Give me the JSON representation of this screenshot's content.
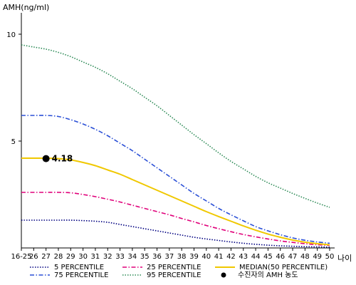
{
  "chart_data": {
    "type": "line",
    "ylabel": "AMH(ng/ml)",
    "xlabel": "나이",
    "ylim": [
      0,
      11
    ],
    "yticks": [
      5,
      10
    ],
    "categories": [
      "16-25",
      "26",
      "27",
      "28",
      "29",
      "30",
      "31",
      "32",
      "33",
      "34",
      "35",
      "36",
      "37",
      "38",
      "39",
      "40",
      "41",
      "42",
      "43",
      "44",
      "45",
      "46",
      "47",
      "48",
      "49",
      "50"
    ],
    "grid": false,
    "legend_position": "bottom",
    "series": [
      {
        "name": "5 PERCENTILE",
        "color": "#000080",
        "style": "dotted",
        "values": [
          1.3,
          1.3,
          1.3,
          1.3,
          1.3,
          1.28,
          1.25,
          1.2,
          1.1,
          1.0,
          0.9,
          0.8,
          0.7,
          0.6,
          0.5,
          0.42,
          0.35,
          0.28,
          0.22,
          0.17,
          0.13,
          0.1,
          0.08,
          0.06,
          0.05,
          0.04
        ]
      },
      {
        "name": "25 PERCENTILE",
        "color": "#e0007a",
        "style": "dashdot",
        "values": [
          2.6,
          2.6,
          2.6,
          2.6,
          2.58,
          2.5,
          2.4,
          2.28,
          2.15,
          2.0,
          1.85,
          1.7,
          1.55,
          1.38,
          1.22,
          1.05,
          0.9,
          0.76,
          0.63,
          0.52,
          0.42,
          0.33,
          0.26,
          0.2,
          0.15,
          0.12
        ]
      },
      {
        "name": "MEDIAN(50 PERCENTILE)",
        "color": "#f0c800",
        "style": "solid",
        "values": [
          4.2,
          4.2,
          4.2,
          4.18,
          4.12,
          4.0,
          3.85,
          3.65,
          3.45,
          3.2,
          2.95,
          2.7,
          2.45,
          2.2,
          1.95,
          1.7,
          1.47,
          1.25,
          1.03,
          0.83,
          0.65,
          0.5,
          0.37,
          0.27,
          0.2,
          0.15
        ]
      },
      {
        "name": "75 PERCENTILE",
        "color": "#2a4fd6",
        "style": "dashdot",
        "values": [
          6.2,
          6.2,
          6.2,
          6.15,
          6.0,
          5.8,
          5.55,
          5.25,
          4.9,
          4.55,
          4.15,
          3.75,
          3.35,
          2.95,
          2.55,
          2.2,
          1.85,
          1.55,
          1.27,
          1.0,
          0.8,
          0.62,
          0.47,
          0.36,
          0.28,
          0.22
        ]
      },
      {
        "name": "95 PERCENTILE",
        "color": "#2e8b57",
        "style": "dotted",
        "values": [
          9.5,
          9.4,
          9.3,
          9.15,
          8.95,
          8.7,
          8.45,
          8.15,
          7.8,
          7.45,
          7.05,
          6.65,
          6.2,
          5.75,
          5.3,
          4.88,
          4.45,
          4.05,
          3.7,
          3.35,
          3.05,
          2.8,
          2.55,
          2.32,
          2.1,
          1.9
        ]
      }
    ],
    "point": {
      "x": "27",
      "y": 4.18,
      "label": "4.18",
      "legend": "수진자의 AMH 농도"
    }
  }
}
